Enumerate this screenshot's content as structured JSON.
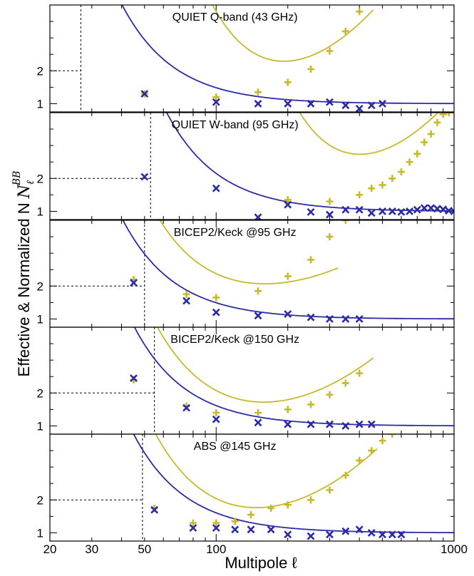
{
  "chart_data": {
    "type": "scatter",
    "xlabel": "Multipole ℓ",
    "ylabel": "Effective & Normalized N",
    "ylabel_sub": "ℓ",
    "ylabel_sup": "BB",
    "xscale": "log",
    "xlim": [
      20,
      1000
    ],
    "x_ticks": [
      20,
      30,
      50,
      100,
      1000
    ],
    "x_tick_labels": [
      "20",
      "30",
      "50",
      "100",
      "1000"
    ],
    "ylim": [
      0.75,
      4.0
    ],
    "y_ticks": [
      1,
      2
    ],
    "y_tick_labels": [
      "1",
      "2"
    ],
    "colors": {
      "yellow": "#c8b92c",
      "blue": "#2b2ba6"
    },
    "panels": [
      {
        "title": "QUIET Q-band (43 GHz)",
        "vline": 27,
        "yellow_curve": {
          "a": 1.2,
          "b": 0.8,
          "c": 1.1,
          "x0": 110,
          "x1": 180,
          "xmax": 460
        },
        "blue_curve": {
          "a": 1.0,
          "b": 1.35,
          "x1": 60
        },
        "yellow_points": [
          [
            50,
            1.3
          ],
          [
            100,
            1.2
          ],
          [
            150,
            1.35
          ],
          [
            200,
            1.65
          ],
          [
            250,
            2.05
          ],
          [
            300,
            2.6
          ],
          [
            350,
            3.2
          ],
          [
            400,
            3.8
          ]
        ],
        "blue_points": [
          [
            50,
            1.3
          ],
          [
            100,
            1.05
          ],
          [
            150,
            1.0
          ],
          [
            200,
            1.0
          ],
          [
            250,
            1.0
          ],
          [
            300,
            1.05
          ],
          [
            350,
            0.95
          ],
          [
            400,
            0.85
          ],
          [
            450,
            0.95
          ],
          [
            500,
            1.0
          ]
        ]
      },
      {
        "title": "QUIET W-band (95 GHz)",
        "vline": 53,
        "yellow_curve": {
          "a": 1.25,
          "b": 0.95,
          "c": 1.0,
          "x0": 190,
          "x1": 380,
          "xmax": 1000
        },
        "blue_curve": {
          "a": 1.0,
          "b": 1.8,
          "x1": 80
        },
        "yellow_points": [
          [
            200,
            1.35
          ],
          [
            300,
            1.3
          ],
          [
            400,
            1.5
          ],
          [
            450,
            1.7
          ],
          [
            500,
            1.8
          ],
          [
            550,
            2.0
          ],
          [
            600,
            2.2
          ],
          [
            650,
            2.5
          ],
          [
            700,
            2.75
          ],
          [
            750,
            3.1
          ],
          [
            800,
            3.35
          ],
          [
            850,
            3.7
          ],
          [
            900,
            3.95
          ],
          [
            950,
            4.0
          ]
        ],
        "blue_points": [
          [
            50,
            2.05
          ],
          [
            100,
            1.7
          ],
          [
            150,
            0.82
          ],
          [
            200,
            1.2
          ],
          [
            250,
            0.98
          ],
          [
            300,
            0.9
          ],
          [
            350,
            1.05
          ],
          [
            400,
            1.05
          ],
          [
            450,
            0.95
          ],
          [
            500,
            1.0
          ],
          [
            550,
            1.0
          ],
          [
            600,
            0.98
          ],
          [
            650,
            1.0
          ],
          [
            700,
            1.05
          ],
          [
            750,
            1.1
          ],
          [
            800,
            1.1
          ],
          [
            850,
            1.08
          ],
          [
            900,
            1.06
          ],
          [
            950,
            1.02
          ],
          [
            1000,
            1.0
          ]
        ]
      },
      {
        "title": "BICEP2/Keck @95 GHz",
        "vline": 50,
        "yellow_curve": {
          "a": 1.62,
          "b": 2.5,
          "c": 0.5,
          "x0": 95,
          "x1": 55,
          "xmax": 330
        },
        "blue_curve": {
          "a": 1.0,
          "b": 2.8,
          "x1": 42
        },
        "yellow_points": [
          [
            45,
            2.2
          ],
          [
            75,
            1.75
          ],
          [
            100,
            1.65
          ],
          [
            150,
            1.85
          ],
          [
            200,
            2.3
          ],
          [
            250,
            2.8
          ],
          [
            300,
            3.5
          ],
          [
            350,
            4.0
          ]
        ],
        "blue_points": [
          [
            45,
            2.1
          ],
          [
            75,
            1.55
          ],
          [
            100,
            1.2
          ],
          [
            150,
            1.1
          ],
          [
            200,
            1.15
          ],
          [
            250,
            1.05
          ],
          [
            300,
            1.0
          ],
          [
            350,
            1.0
          ],
          [
            400,
            1.0
          ]
        ]
      },
      {
        "title": "BICEP2/Keck @150 GHz",
        "vline": 55,
        "yellow_curve": {
          "a": 1.35,
          "b": 3.5,
          "c": 0.78,
          "x0": 115,
          "x1": 45,
          "xmax": 460
        },
        "blue_curve": {
          "a": 1.0,
          "b": 3.5,
          "x1": 42
        },
        "yellow_points": [
          [
            45,
            2.4
          ],
          [
            75,
            1.6
          ],
          [
            100,
            1.4
          ],
          [
            150,
            1.4
          ],
          [
            200,
            1.5
          ],
          [
            250,
            1.65
          ],
          [
            300,
            1.95
          ],
          [
            350,
            2.3
          ],
          [
            400,
            2.6
          ]
        ],
        "blue_points": [
          [
            45,
            2.45
          ],
          [
            75,
            1.55
          ],
          [
            100,
            1.2
          ],
          [
            150,
            1.1
          ],
          [
            200,
            1.05
          ],
          [
            250,
            1.05
          ],
          [
            300,
            1.05
          ],
          [
            350,
            1.0
          ],
          [
            400,
            1.05
          ],
          [
            450,
            1.05
          ]
        ]
      },
      {
        "title": "ABS @145 GHz",
        "vline": 49,
        "yellow_curve": {
          "a": 1.33,
          "b": 3.5,
          "c": 0.85,
          "x0": 105,
          "x1": 45,
          "xmax": 480
        },
        "blue_curve": {
          "a": 1.0,
          "b": 3.0,
          "x1": 45
        },
        "yellow_points": [
          [
            55,
            1.75
          ],
          [
            80,
            1.3
          ],
          [
            100,
            1.3
          ],
          [
            120,
            1.35
          ],
          [
            140,
            1.55
          ],
          [
            170,
            1.75
          ],
          [
            200,
            1.85
          ],
          [
            250,
            2.0
          ],
          [
            300,
            2.3
          ],
          [
            350,
            2.75
          ],
          [
            400,
            3.2
          ],
          [
            450,
            3.5
          ],
          [
            500,
            3.8
          ],
          [
            550,
            4.0
          ]
        ],
        "blue_points": [
          [
            55,
            1.7
          ],
          [
            80,
            1.15
          ],
          [
            100,
            1.15
          ],
          [
            120,
            1.1
          ],
          [
            140,
            1.1
          ],
          [
            170,
            1.1
          ],
          [
            200,
            0.95
          ],
          [
            250,
            0.9
          ],
          [
            300,
            0.95
          ],
          [
            350,
            1.05
          ],
          [
            400,
            1.1
          ],
          [
            450,
            1.0
          ],
          [
            500,
            0.95
          ],
          [
            550,
            0.95
          ],
          [
            600,
            0.95
          ]
        ]
      }
    ]
  }
}
